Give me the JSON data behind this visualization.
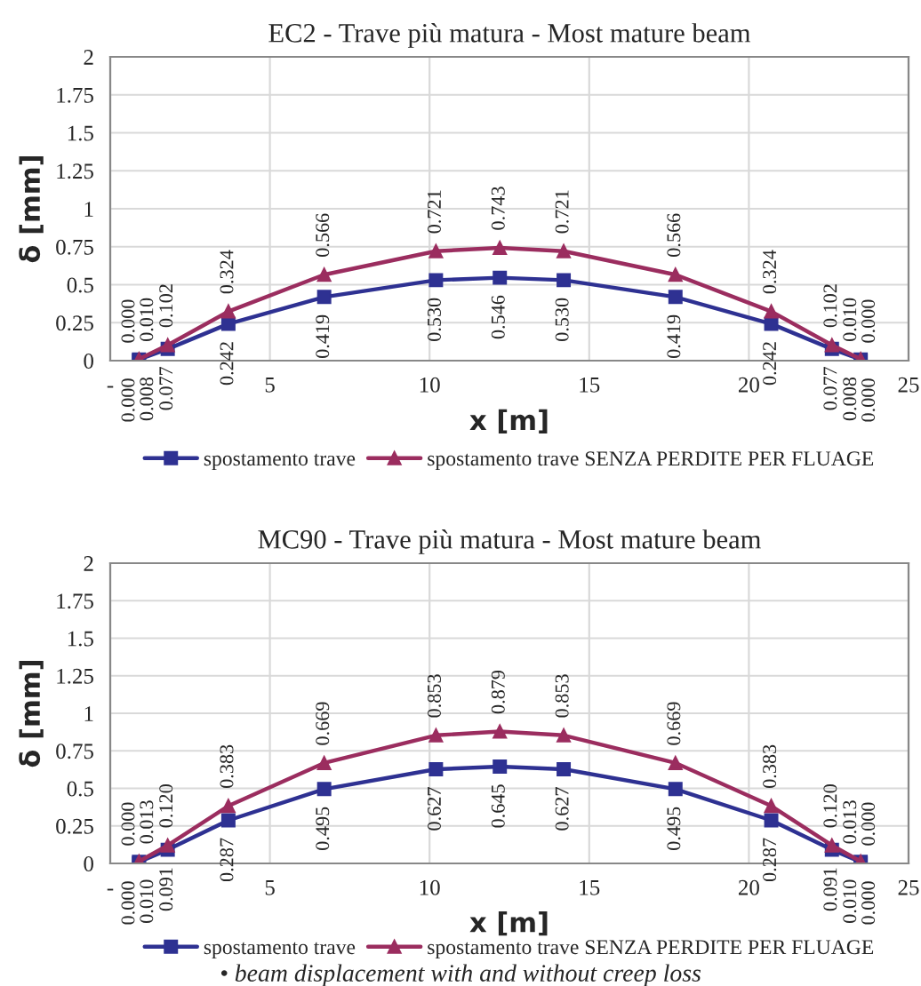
{
  "chart_data": [
    {
      "type": "line",
      "title": "EC2 - Trave più matura - Most mature beam",
      "xlabel": "x [m]",
      "ylabel": "δ [mm]",
      "x": [
        0.9,
        0.9,
        1.8,
        3.7,
        6.7,
        10.2,
        12.2,
        14.2,
        17.7,
        20.7,
        22.6,
        23.5,
        23.5
      ],
      "series": [
        {
          "name": "spostamento trave",
          "color": "#2e3192",
          "marker": "square",
          "values": [
            0.0,
            0.008,
            0.077,
            0.242,
            0.419,
            0.53,
            0.546,
            0.53,
            0.419,
            0.242,
            0.077,
            0.008,
            0.0
          ],
          "value_labels": [
            "0.000",
            "0.008",
            "0.077",
            "0.242",
            "0.419",
            "0.530",
            "0.546",
            "0.530",
            "0.419",
            "0.242",
            "0.077",
            "0.008",
            "0.000"
          ]
        },
        {
          "name": "spostamento trave SENZA PERDITE PER FLUAGE",
          "color": "#9b2d5f",
          "marker": "triangle",
          "values": [
            0.0,
            0.01,
            0.102,
            0.324,
            0.566,
            0.721,
            0.743,
            0.721,
            0.566,
            0.324,
            0.102,
            0.01,
            0.0
          ],
          "value_labels": [
            "0.000",
            "0.010",
            "0.102",
            "0.324",
            "0.566",
            "0.721",
            "0.743",
            "0.721",
            "0.566",
            "0.324",
            "0.102",
            "0.010",
            "0.000"
          ]
        }
      ],
      "xlim": [
        0,
        25
      ],
      "xticks": [
        {
          "value": 0,
          "label": "-"
        },
        5,
        10,
        15,
        20,
        25
      ],
      "ylim": [
        0,
        2
      ],
      "yticks": [
        0,
        0.25,
        0.5,
        0.75,
        1,
        1.25,
        1.5,
        1.75,
        2
      ],
      "grid": true,
      "legend": "bottom",
      "line_style": "solid"
    },
    {
      "type": "line",
      "title": "MC90 - Trave più matura - Most mature beam",
      "xlabel": "x [m]",
      "ylabel": "δ [mm]",
      "x": [
        0.9,
        0.9,
        1.8,
        3.7,
        6.7,
        10.2,
        12.2,
        14.2,
        17.7,
        20.7,
        22.6,
        23.5,
        23.5
      ],
      "series": [
        {
          "name": "spostamento trave",
          "color": "#2e3192",
          "marker": "square",
          "values": [
            0.0,
            0.01,
            0.091,
            0.287,
            0.495,
            0.627,
            0.645,
            0.627,
            0.495,
            0.287,
            0.091,
            0.01,
            0.0
          ],
          "value_labels": [
            "0.000",
            "0.010",
            "0.091",
            "0.287",
            "0.495",
            "0.627",
            "0.645",
            "0.627",
            "0.495",
            "0.287",
            "0.091",
            "0.010",
            "0.000"
          ]
        },
        {
          "name": "spostamento trave SENZA PERDITE PER FLUAGE",
          "color": "#9b2d5f",
          "marker": "triangle",
          "values": [
            0.0,
            0.013,
            0.12,
            0.383,
            0.669,
            0.853,
            0.879,
            0.853,
            0.669,
            0.383,
            0.12,
            0.013,
            0.0
          ],
          "value_labels": [
            "0.000",
            "0.013",
            "0.120",
            "0.383",
            "0.669",
            "0.853",
            "0.879",
            "0.853",
            "0.669",
            "0.383",
            "0.120",
            "0.013",
            "0.000"
          ]
        }
      ],
      "xlim": [
        0,
        25
      ],
      "xticks": [
        {
          "value": 0,
          "label": "-"
        },
        5,
        10,
        15,
        20,
        25
      ],
      "ylim": [
        0,
        2
      ],
      "yticks": [
        0,
        0.25,
        0.5,
        0.75,
        1,
        1.25,
        1.5,
        1.75,
        2
      ],
      "grid": true,
      "legend": "bottom",
      "line_style": "solid",
      "annotations": [
        "• beam displacement with and without creep loss"
      ]
    }
  ]
}
